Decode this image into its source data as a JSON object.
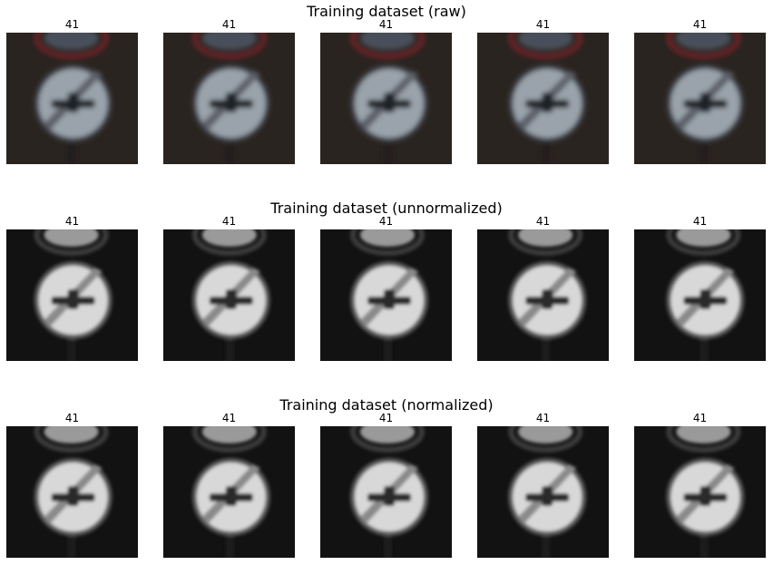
{
  "rows": [
    {
      "title": "Training dataset (raw)",
      "style": "raw",
      "labels": [
        "41",
        "41",
        "41",
        "41",
        "41"
      ]
    },
    {
      "title": "Training dataset (unnormalized)",
      "style": "gray",
      "labels": [
        "41",
        "41",
        "41",
        "41",
        "41"
      ]
    },
    {
      "title": "Training dataset (normalized)",
      "style": "gray",
      "labels": [
        "41",
        "41",
        "41",
        "41",
        "41"
      ]
    }
  ],
  "colors": {
    "raw_background": "#2a2420",
    "raw_ring": "#6b2226",
    "raw_sign": "#9aa3ab",
    "gray_background": "#121212",
    "gray_sign": "#d8d8d8"
  }
}
